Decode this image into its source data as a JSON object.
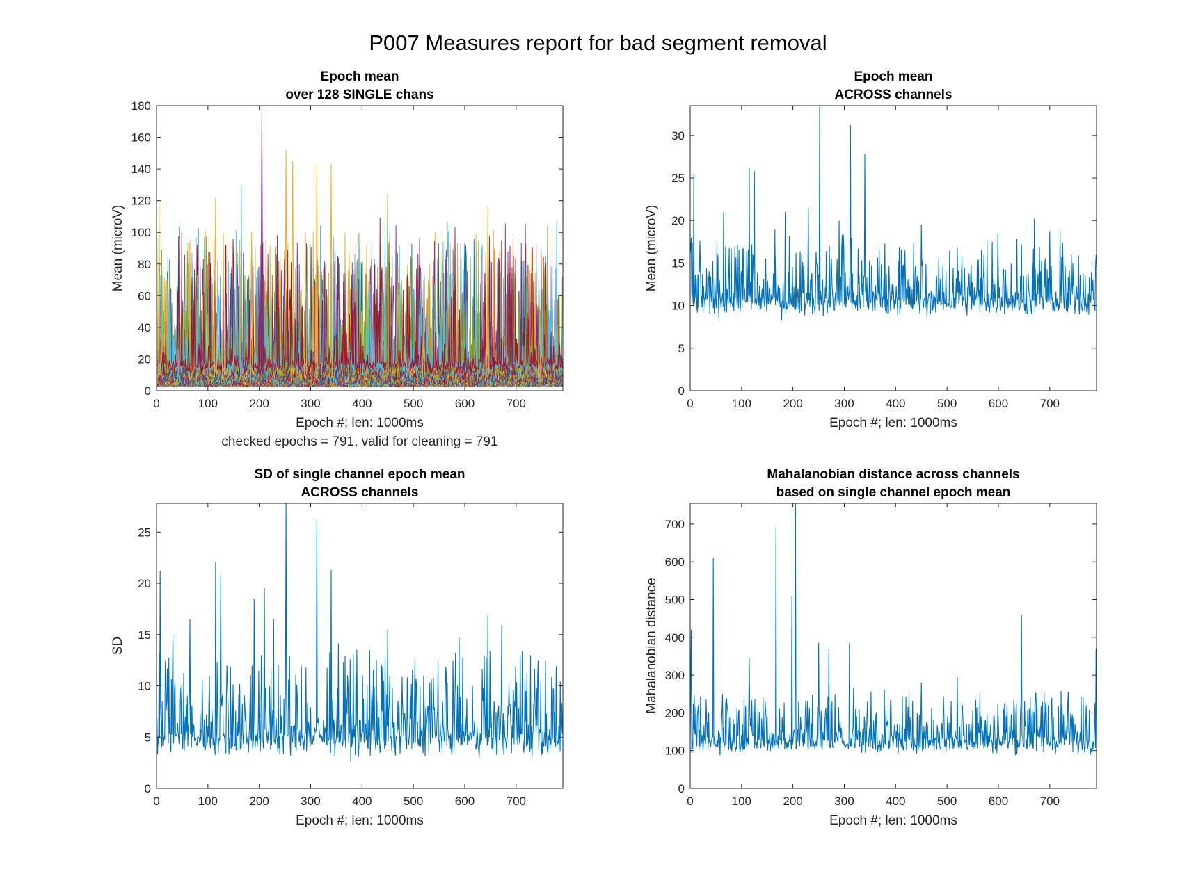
{
  "figure": {
    "title": "P007 Measures report for bad segment removal"
  },
  "chart_data": [
    {
      "type": "line",
      "title": "Epoch mean",
      "subtitle": "over 128 SINGLE chans",
      "xlabel": "Epoch #; len: 1000ms",
      "xnote": "checked epochs = 791, valid for cleaning = 791",
      "ylabel": "Mean (microV)",
      "xlim": [
        0,
        791
      ],
      "ylim": [
        0,
        180
      ],
      "xticks": [
        0,
        100,
        200,
        300,
        400,
        500,
        600,
        700
      ],
      "yticks": [
        0,
        20,
        40,
        60,
        80,
        100,
        120,
        140,
        160,
        180
      ],
      "grid": false,
      "n_channels": 128,
      "series_colors": [
        "#0072BD",
        "#D95319",
        "#EDB120",
        "#7E2F8E",
        "#77AC30",
        "#4DBEEE",
        "#A2142F"
      ],
      "peaks": [
        {
          "x": 5,
          "y": 119,
          "color": "#EDB120"
        },
        {
          "x": 20,
          "y": 70,
          "color": "#EDB120"
        },
        {
          "x": 65,
          "y": 95,
          "color": "#EDB120"
        },
        {
          "x": 115,
          "y": 122,
          "color": "#EDB120"
        },
        {
          "x": 130,
          "y": 100,
          "color": "#EDB120"
        },
        {
          "x": 165,
          "y": 130,
          "color": "#4DBEEE"
        },
        {
          "x": 185,
          "y": 100,
          "color": "#EDB120"
        },
        {
          "x": 205,
          "y": 180,
          "color": "#7E2F8E"
        },
        {
          "x": 252,
          "y": 152,
          "color": "#EDB120"
        },
        {
          "x": 265,
          "y": 145,
          "color": "#EDB120"
        },
        {
          "x": 290,
          "y": 100,
          "color": "#EDB120"
        },
        {
          "x": 312,
          "y": 143,
          "color": "#EDB120"
        },
        {
          "x": 340,
          "y": 143,
          "color": "#EDB120"
        },
        {
          "x": 450,
          "y": 124,
          "color": "#77AC30"
        },
        {
          "x": 470,
          "y": 78,
          "color": "#EDB120"
        },
        {
          "x": 520,
          "y": 70,
          "color": "#EDB120"
        },
        {
          "x": 645,
          "y": 116,
          "color": "#EDB120"
        },
        {
          "x": 720,
          "y": 72,
          "color": "#77AC30"
        },
        {
          "x": 745,
          "y": 62,
          "color": "#EDB120"
        }
      ]
    },
    {
      "type": "line",
      "title": "Epoch mean",
      "subtitle": "ACROSS channels",
      "xlabel": "Epoch #; len: 1000ms",
      "ylabel": "Mean (microV)",
      "xlim": [
        0,
        791
      ],
      "ylim": [
        0,
        33.5
      ],
      "xticks": [
        0,
        100,
        200,
        300,
        400,
        500,
        600,
        700
      ],
      "yticks": [
        0,
        5,
        10,
        15,
        20,
        25,
        30
      ],
      "grid": false,
      "color": "#0072BD",
      "baseline": 10,
      "noise": 2,
      "floor": 5,
      "peaks": [
        {
          "x": 0,
          "y": 16
        },
        {
          "x": 7,
          "y": 25.5
        },
        {
          "x": 65,
          "y": 21
        },
        {
          "x": 115,
          "y": 26.2
        },
        {
          "x": 125,
          "y": 25.8
        },
        {
          "x": 185,
          "y": 21
        },
        {
          "x": 230,
          "y": 21.5
        },
        {
          "x": 252,
          "y": 33.5
        },
        {
          "x": 290,
          "y": 20
        },
        {
          "x": 312,
          "y": 31.2
        },
        {
          "x": 340,
          "y": 27.8
        },
        {
          "x": 450,
          "y": 19.5
        },
        {
          "x": 520,
          "y": 16.8
        },
        {
          "x": 645,
          "y": 17.2
        },
        {
          "x": 670,
          "y": 20.2
        },
        {
          "x": 720,
          "y": 19
        }
      ]
    },
    {
      "type": "line",
      "title": "SD of single channel epoch mean",
      "subtitle": "ACROSS channels",
      "xlabel": "Epoch #; len: 1000ms",
      "ylabel": "SD",
      "xlim": [
        0,
        791
      ],
      "ylim": [
        0,
        27.8
      ],
      "xticks": [
        0,
        100,
        200,
        300,
        400,
        500,
        600,
        700
      ],
      "yticks": [
        0,
        5,
        10,
        15,
        20,
        25
      ],
      "grid": false,
      "color": "#0072BD",
      "baseline": 4.5,
      "noise": 2.2,
      "floor": 1.9,
      "peaks": [
        {
          "x": 7,
          "y": 21.2
        },
        {
          "x": 32,
          "y": 15
        },
        {
          "x": 65,
          "y": 16.5
        },
        {
          "x": 115,
          "y": 22.1
        },
        {
          "x": 125,
          "y": 20.8
        },
        {
          "x": 190,
          "y": 18.5
        },
        {
          "x": 210,
          "y": 19.5
        },
        {
          "x": 228,
          "y": 16.5
        },
        {
          "x": 252,
          "y": 27.8
        },
        {
          "x": 312,
          "y": 26.2
        },
        {
          "x": 340,
          "y": 21.3
        },
        {
          "x": 450,
          "y": 15.5
        },
        {
          "x": 520,
          "y": 11
        },
        {
          "x": 645,
          "y": 16.9
        },
        {
          "x": 672,
          "y": 15.9
        },
        {
          "x": 712,
          "y": 13.4
        }
      ]
    },
    {
      "type": "line",
      "title": "Mahalanobian distance across channels",
      "subtitle": "based on single channel epoch mean",
      "xlabel": "Epoch #; len: 1000ms",
      "ylabel": "Mahalanobian distance",
      "xlim": [
        0,
        791
      ],
      "ylim": [
        0,
        755
      ],
      "xticks": [
        0,
        100,
        200,
        300,
        400,
        500,
        600,
        700
      ],
      "yticks": [
        0,
        100,
        200,
        300,
        400,
        500,
        600,
        700
      ],
      "grid": false,
      "color": "#0072BD",
      "baseline": 115,
      "noise": 35,
      "floor": 55,
      "peaks": [
        {
          "x": 2,
          "y": 420
        },
        {
          "x": 45,
          "y": 610
        },
        {
          "x": 115,
          "y": 345
        },
        {
          "x": 167,
          "y": 692
        },
        {
          "x": 198,
          "y": 510
        },
        {
          "x": 205,
          "y": 755
        },
        {
          "x": 250,
          "y": 385
        },
        {
          "x": 270,
          "y": 370
        },
        {
          "x": 310,
          "y": 385
        },
        {
          "x": 450,
          "y": 280
        },
        {
          "x": 520,
          "y": 295
        },
        {
          "x": 645,
          "y": 460
        },
        {
          "x": 662,
          "y": 240
        },
        {
          "x": 791,
          "y": 370
        }
      ]
    }
  ]
}
